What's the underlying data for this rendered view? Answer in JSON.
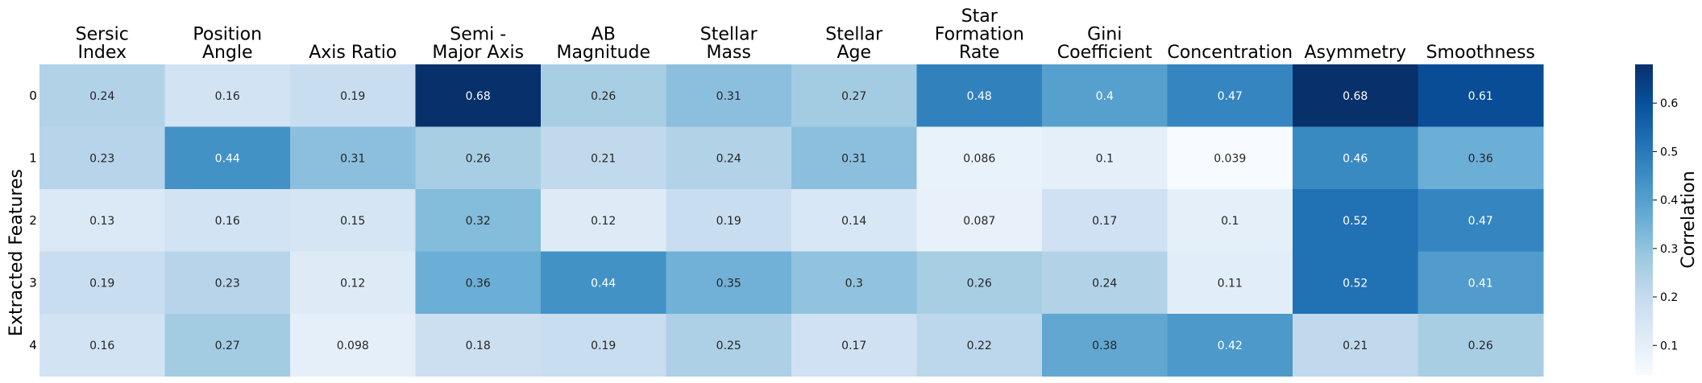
{
  "chart_data": {
    "type": "heatmap",
    "title": "",
    "columns": [
      [
        "Sersic",
        "Index"
      ],
      [
        "Position",
        "Angle"
      ],
      [
        "Axis Ratio"
      ],
      [
        "Semi -",
        "Major Axis"
      ],
      [
        "AB",
        "Magnitude"
      ],
      [
        "Stellar",
        "Mass"
      ],
      [
        "Stellar",
        "Age"
      ],
      [
        "Star",
        "Formation",
        "Rate"
      ],
      [
        "Gini",
        "Coefficient"
      ],
      [
        "Concentration"
      ],
      [
        "Asymmetry"
      ],
      [
        "Smoothness"
      ]
    ],
    "rows": [
      "0",
      "1",
      "2",
      "3",
      "4"
    ],
    "ylabel": "Extracted Features",
    "values": [
      [
        0.24,
        0.16,
        0.19,
        0.68,
        0.26,
        0.31,
        0.27,
        0.48,
        0.4,
        0.47,
        0.68,
        0.61
      ],
      [
        0.23,
        0.44,
        0.31,
        0.26,
        0.21,
        0.24,
        0.31,
        0.086,
        0.1,
        0.039,
        0.46,
        0.36
      ],
      [
        0.13,
        0.16,
        0.15,
        0.32,
        0.12,
        0.19,
        0.14,
        0.087,
        0.17,
        0.1,
        0.52,
        0.47
      ],
      [
        0.19,
        0.23,
        0.12,
        0.36,
        0.44,
        0.35,
        0.3,
        0.26,
        0.24,
        0.11,
        0.52,
        0.41
      ],
      [
        0.16,
        0.27,
        0.098,
        0.18,
        0.19,
        0.25,
        0.17,
        0.22,
        0.38,
        0.42,
        0.21,
        0.26
      ]
    ],
    "colorbar": {
      "label": "Correlation",
      "range": [
        0.039,
        0.68
      ],
      "ticks": [
        0.1,
        0.2,
        0.3,
        0.4,
        0.5,
        0.6
      ],
      "colormap": "Blues"
    }
  }
}
